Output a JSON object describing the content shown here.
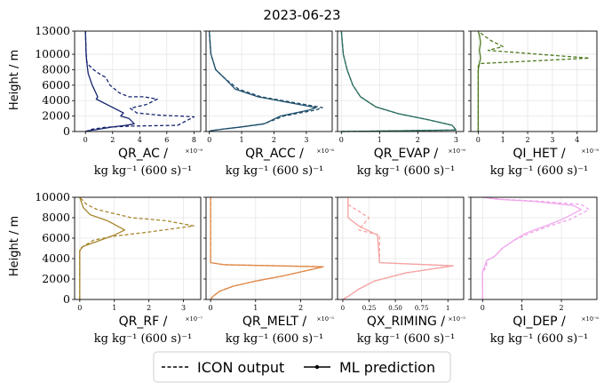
{
  "figure": {
    "title": "2023-06-23",
    "ylabel": "Height / m",
    "unit_label": "kg kg⁻¹ (600 s)⁻¹"
  },
  "legend": {
    "items": [
      {
        "label": "ICON output",
        "style": "dashed"
      },
      {
        "label": "ML prediction",
        "style": "solid-marker"
      }
    ],
    "placement": "bottom-center"
  },
  "chart_data": [
    {
      "type": "line",
      "panel": "QR_AC",
      "xlabel": "QR_AC /",
      "exponent": "×10⁻⁸",
      "color": "#15246e",
      "xlim": [
        -0.8,
        8.5
      ],
      "xticks": [
        0,
        2,
        4,
        6,
        8
      ],
      "ylim": [
        0,
        13000
      ],
      "yticks": [
        0,
        2000,
        4000,
        6000,
        8000,
        10000,
        13000
      ],
      "series": [
        {
          "name": "ICON output",
          "style": "dashed",
          "x": [
            0,
            0.2,
            0.5,
            1.5,
            3.4,
            6.8,
            8.0,
            7.0,
            5.5,
            3.8,
            3.3,
            4.5,
            5.3,
            4.3,
            3.2,
            2.5,
            1.8,
            1.5,
            1.0,
            0.6,
            0.3,
            0.1,
            0.05,
            0
          ],
          "y": [
            0,
            100,
            300,
            550,
            700,
            800,
            1900,
            2000,
            2100,
            2400,
            3000,
            3500,
            4200,
            4500,
            4500,
            5000,
            6000,
            7000,
            7500,
            8000,
            8500,
            9000,
            10000,
            13000
          ]
        },
        {
          "name": "ML prediction",
          "style": "solid",
          "x": [
            0,
            0.2,
            1.0,
            2.0,
            3.0,
            3.6,
            3.2,
            2.6,
            2.8,
            1.8,
            0.8,
            0.9,
            0.5,
            0.2,
            0.1,
            0.05,
            0
          ],
          "y": [
            0,
            100,
            300,
            600,
            800,
            1000,
            1700,
            2000,
            2400,
            3300,
            4200,
            4500,
            6000,
            7500,
            9000,
            10000,
            13000
          ]
        }
      ]
    },
    {
      "type": "line",
      "panel": "QR_ACC",
      "xlabel": "QR_ACC /",
      "exponent": "×10⁻⁶",
      "color": "#1e4d6b",
      "xlim": [
        -0.1,
        3.8
      ],
      "xticks": [
        0,
        1,
        2,
        3
      ],
      "ylim": [
        0,
        13000
      ],
      "yticks": [
        0,
        2000,
        4000,
        6000,
        8000,
        10000,
        13000
      ],
      "series": [
        {
          "name": "ICON output",
          "style": "dashed",
          "x": [
            0,
            0.05,
            0.4,
            1.0,
            1.7,
            2.3,
            3.3,
            3.5,
            1.6,
            0.9,
            0.5,
            0.2,
            0.05,
            0
          ],
          "y": [
            0,
            100,
            300,
            600,
            1000,
            2000,
            2800,
            3100,
            4500,
            5500,
            6800,
            8000,
            10000,
            13000
          ]
        },
        {
          "name": "ML prediction",
          "style": "solid",
          "x": [
            0,
            0.05,
            0.4,
            1.0,
            1.7,
            2.2,
            3.1,
            3.3,
            1.5,
            0.8,
            0.5,
            0.2,
            0.05,
            0
          ],
          "y": [
            0,
            100,
            300,
            600,
            1000,
            2000,
            2800,
            3100,
            4500,
            5500,
            6800,
            8000,
            10000,
            13000
          ]
        }
      ]
    },
    {
      "type": "line",
      "panel": "QR_EVAP",
      "xlabel": "QR_EVAP /",
      "exponent": "×10⁻⁶",
      "color": "#2b6d5f",
      "xlim": [
        -0.1,
        3.2
      ],
      "xticks": [
        0,
        1,
        2,
        3
      ],
      "ylim": [
        0,
        13000
      ],
      "yticks": [
        0,
        2000,
        4000,
        6000,
        8000,
        10000,
        13000
      ],
      "series": [
        {
          "name": "ICON output",
          "style": "dashed",
          "x": [
            0,
            3.0,
            2.9,
            2.3,
            1.5,
            0.9,
            0.5,
            0.3,
            0.15,
            0.05,
            0
          ],
          "y": [
            0,
            200,
            800,
            1500,
            2300,
            3200,
            4500,
            6000,
            8000,
            10000,
            13000
          ]
        },
        {
          "name": "ML prediction",
          "style": "solid",
          "x": [
            0,
            3.0,
            2.9,
            2.3,
            1.5,
            0.9,
            0.5,
            0.3,
            0.15,
            0.05,
            0
          ],
          "y": [
            0,
            200,
            800,
            1500,
            2300,
            3200,
            4500,
            6000,
            8000,
            10000,
            13000
          ]
        }
      ]
    },
    {
      "type": "line",
      "panel": "QI_HET",
      "xlabel": "QI_HET /",
      "exponent": "×10⁻⁸",
      "color": "#4d7a1f",
      "xlim": [
        -0.3,
        4.8
      ],
      "xticks": [
        0,
        1,
        2,
        3,
        4
      ],
      "ylim": [
        0,
        13000
      ],
      "yticks": [
        0,
        2000,
        4000,
        6000,
        8000,
        10000,
        13000
      ],
      "series": [
        {
          "name": "ICON output",
          "style": "dashed",
          "x": [
            0,
            0,
            0.1,
            4.5,
            0.4,
            1.0,
            0.5,
            0.2,
            0
          ],
          "y": [
            0,
            8500,
            8800,
            9500,
            10500,
            11000,
            11800,
            12500,
            13000
          ]
        },
        {
          "name": "ML prediction",
          "style": "solid",
          "x": [
            0,
            0,
            0.05,
            0.1,
            0.05,
            0.1,
            0.05,
            0
          ],
          "y": [
            0,
            8000,
            8800,
            9500,
            10500,
            11500,
            12500,
            13000
          ]
        }
      ]
    },
    {
      "type": "line",
      "panel": "QR_RF",
      "xlabel": "QR_RF /",
      "exponent": "×10⁻⁷",
      "color": "#a8862e",
      "xlim": [
        -0.15,
        3.5
      ],
      "xticks": [
        0,
        1,
        2,
        3
      ],
      "ylim": [
        0,
        10000
      ],
      "yticks": [
        0,
        2000,
        4000,
        6000,
        8000,
        10000
      ],
      "series": [
        {
          "name": "ICON output",
          "style": "dashed",
          "x": [
            0,
            0,
            0.05,
            0.4,
            1.0,
            2.0,
            3.3,
            2.5,
            1.5,
            0.5,
            0.2,
            0
          ],
          "y": [
            0,
            4700,
            5100,
            5800,
            6200,
            6600,
            7200,
            7700,
            8000,
            8800,
            9300,
            10000
          ]
        },
        {
          "name": "ML prediction",
          "style": "solid",
          "x": [
            0,
            0,
            0.1,
            0.6,
            1.0,
            1.3,
            0.8,
            0.3,
            0.1,
            0
          ],
          "y": [
            0,
            4800,
            5200,
            5800,
            6300,
            6800,
            7700,
            8300,
            9000,
            10000
          ]
        }
      ]
    },
    {
      "type": "line",
      "panel": "QR_MELT",
      "xlabel": "QR_MELT /",
      "exponent": "×10⁻⁵",
      "color": "#e0894a",
      "xlim": [
        -0.1,
        2.7
      ],
      "xticks": [
        0,
        1,
        2
      ],
      "ylim": [
        0,
        10000
      ],
      "yticks": [
        0,
        2000,
        4000,
        6000,
        8000,
        10000
      ],
      "series": [
        {
          "name": "ICON output",
          "style": "dashed",
          "x": [
            0,
            0.05,
            0.2,
            0.5,
            1.0,
            1.6,
            2.5,
            0.3,
            0,
            0
          ],
          "y": [
            0,
            300,
            800,
            1300,
            1800,
            2300,
            3200,
            3400,
            3600,
            10000
          ]
        },
        {
          "name": "ML prediction",
          "style": "solid",
          "x": [
            0,
            0.05,
            0.2,
            0.5,
            1.0,
            1.6,
            2.5,
            0.3,
            0,
            0
          ],
          "y": [
            0,
            300,
            800,
            1300,
            1800,
            2300,
            3200,
            3400,
            3600,
            10000
          ]
        }
      ]
    },
    {
      "type": "line",
      "panel": "QX_RIMING",
      "xlabel": "QX_RIMING /",
      "exponent": "×10⁻⁵",
      "color": "#f5a3a3",
      "xlim": [
        -0.05,
        1.15
      ],
      "xticks": [
        0.0,
        0.25,
        0.5,
        0.75,
        1.0
      ],
      "ylim": [
        0,
        10000
      ],
      "yticks": [
        0,
        2000,
        4000,
        6000,
        8000,
        10000
      ],
      "series": [
        {
          "name": "ICON output",
          "style": "dashed",
          "x": [
            0,
            0.05,
            0.15,
            0.3,
            0.6,
            1.05,
            0.35,
            0.35,
            0.15,
            0.25,
            0.05,
            0.05
          ],
          "y": [
            0,
            300,
            1000,
            1800,
            2600,
            3300,
            3600,
            6300,
            6800,
            8000,
            9300,
            10000
          ]
        },
        {
          "name": "ML prediction",
          "style": "solid",
          "x": [
            0,
            0.05,
            0.15,
            0.3,
            0.6,
            1.05,
            0.35,
            0.33,
            0.15,
            0.05,
            0.05
          ],
          "y": [
            0,
            300,
            1000,
            1800,
            2600,
            3300,
            3600,
            6300,
            7200,
            8000,
            10000
          ]
        }
      ]
    },
    {
      "type": "line",
      "panel": "QI_DEP",
      "xlabel": "QI_DEP /",
      "exponent": "×10⁻⁶",
      "color": "#f0a6ec",
      "xlim": [
        -0.3,
        2.9
      ],
      "xticks": [
        0,
        1,
        2
      ],
      "ylim": [
        0,
        10000
      ],
      "yticks": [
        0,
        2000,
        4000,
        6000,
        8000,
        10000
      ],
      "series": [
        {
          "name": "ICON output",
          "style": "dashed",
          "x": [
            0,
            0,
            0.1,
            0.1,
            0.3,
            0.5,
            0.8,
            1.2,
            1.7,
            2.2,
            2.7,
            2.5,
            1.5,
            0.5,
            0
          ],
          "y": [
            0,
            2700,
            3200,
            3800,
            4200,
            5000,
            5800,
            6500,
            7200,
            7800,
            8800,
            9300,
            9600,
            9800,
            10000
          ]
        },
        {
          "name": "ML prediction",
          "style": "solid",
          "x": [
            0,
            0,
            0.05,
            0.1,
            0.3,
            0.5,
            0.8,
            1.1,
            1.6,
            2.0,
            2.5,
            2.3,
            1.3,
            0.4,
            0
          ],
          "y": [
            0,
            2700,
            3200,
            3800,
            4200,
            5000,
            5800,
            6500,
            7200,
            7800,
            8800,
            9200,
            9600,
            9800,
            10000
          ]
        }
      ]
    }
  ]
}
